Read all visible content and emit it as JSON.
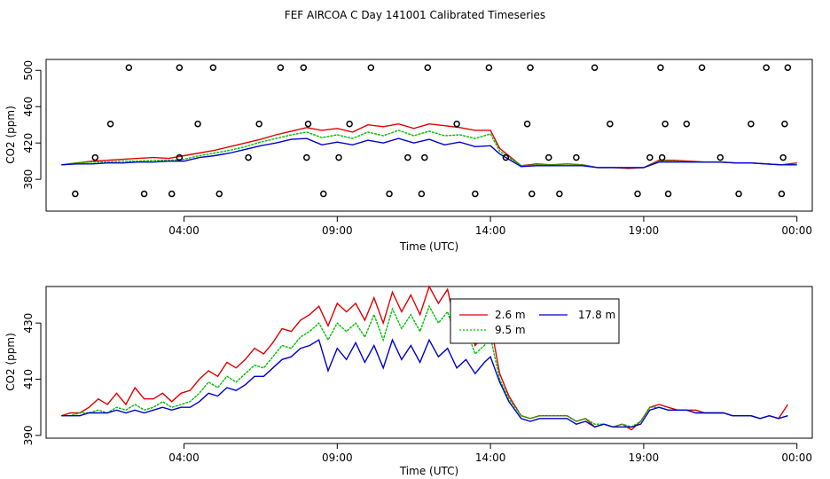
{
  "figure": {
    "title": "FEF AIRCOA C  Day 141001  Calibrated Timeseries"
  },
  "colors": {
    "red": "#e00000",
    "green": "#00c000",
    "blue": "#0000d0",
    "axis": "#000000"
  },
  "chart_data": [
    {
      "type": "line",
      "panel": "top",
      "xlabel": "Time (UTC)",
      "ylabel": "CO2 (ppm)",
      "xlim": [
        -0.5,
        24.5
      ],
      "ylim": [
        345,
        512
      ],
      "x_ticks": [
        4,
        9,
        14,
        19,
        24
      ],
      "x_tick_labels": [
        "04:00",
        "09:00",
        "14:00",
        "19:00",
        "00:00"
      ],
      "y_ticks": [
        380,
        420,
        460,
        500
      ],
      "y_tick_labels": [
        "380",
        "420",
        "460",
        "500"
      ],
      "series": [
        {
          "name": "2.6 m",
          "color": "red",
          "x": [
            0,
            0.5,
            1,
            1.5,
            2,
            2.5,
            3,
            3.5,
            4,
            4.5,
            5,
            5.5,
            6,
            6.5,
            7,
            7.5,
            8,
            8.5,
            9,
            9.5,
            10,
            10.5,
            11,
            11.5,
            12,
            12.5,
            13,
            13.5,
            14,
            14.3,
            15,
            15.5,
            16,
            16.5,
            17,
            17.5,
            18,
            18.5,
            19,
            19.5,
            20,
            20.5,
            21,
            21.5,
            22,
            22.5,
            23,
            23.5,
            24
          ],
          "y": [
            396,
            398,
            400,
            401,
            402,
            403,
            404,
            403,
            406,
            409,
            412,
            416,
            420,
            424,
            429,
            433,
            437,
            434,
            436,
            432,
            440,
            438,
            441,
            436,
            441,
            439,
            437,
            434,
            434,
            414,
            395,
            397,
            396,
            397,
            396,
            393,
            393,
            392,
            393,
            401,
            401,
            400,
            399,
            399,
            398,
            398,
            397,
            396,
            398
          ]
        },
        {
          "name": "9.5 m",
          "color": "green",
          "x": [
            0,
            0.5,
            1,
            1.5,
            2,
            2.5,
            3,
            3.5,
            4,
            4.5,
            5,
            5.5,
            6,
            6.5,
            7,
            7.5,
            8,
            8.5,
            9,
            9.5,
            10,
            10.5,
            11,
            11.5,
            12,
            12.5,
            13,
            13.5,
            14,
            14.3,
            15,
            15.5,
            16,
            16.5,
            17,
            17.5,
            18,
            18.5,
            19,
            19.5,
            20,
            20.5,
            21,
            21.5,
            22,
            22.5,
            23,
            23.5,
            24
          ],
          "y": [
            396,
            398,
            399,
            399,
            400,
            400,
            401,
            401,
            402,
            406,
            409,
            412,
            416,
            421,
            425,
            429,
            432,
            426,
            429,
            425,
            432,
            428,
            434,
            428,
            433,
            428,
            429,
            425,
            430,
            411,
            395,
            396,
            396,
            397,
            396,
            393,
            393,
            393,
            393,
            400,
            400,
            399,
            399,
            399,
            398,
            398,
            397,
            396,
            396
          ]
        },
        {
          "name": "17.8 m",
          "color": "blue",
          "x": [
            0,
            0.5,
            1,
            1.5,
            2,
            2.5,
            3,
            3.5,
            4,
            4.5,
            5,
            5.5,
            6,
            6.5,
            7,
            7.5,
            8,
            8.5,
            9,
            9.5,
            10,
            10.5,
            11,
            11.5,
            12,
            12.5,
            13,
            13.5,
            14,
            14.3,
            15,
            15.5,
            16,
            16.5,
            17,
            17.5,
            18,
            18.5,
            19,
            19.5,
            20,
            20.5,
            21,
            21.5,
            22,
            22.5,
            23,
            23.5,
            24
          ],
          "y": [
            396,
            397,
            397,
            398,
            398,
            399,
            399,
            400,
            400,
            404,
            406,
            409,
            413,
            417,
            420,
            424,
            425,
            418,
            421,
            418,
            423,
            420,
            425,
            420,
            424,
            418,
            421,
            416,
            417,
            408,
            394,
            395,
            395,
            395,
            395,
            393,
            393,
            393,
            393,
            399,
            399,
            399,
            399,
            399,
            398,
            398,
            397,
            396,
            396
          ]
        }
      ],
      "points": {
        "x": [
          0.45,
          1.1,
          1.6,
          2.2,
          2.7,
          3.6,
          3.85,
          3.85,
          4.45,
          4.95,
          5.15,
          6.1,
          6.45,
          7.15,
          7.9,
          8.0,
          8.05,
          8.55,
          9.05,
          9.4,
          10.1,
          10.7,
          11.3,
          11.75,
          11.85,
          11.95,
          12.9,
          13.5,
          13.95,
          14.5,
          15.2,
          15.3,
          15.35,
          15.9,
          16.25,
          16.8,
          17.4,
          17.9,
          18.8,
          19.2,
          19.55,
          19.6,
          19.7,
          19.8,
          20.4,
          20.9,
          21.5,
          22.1,
          22.5,
          23.0,
          23.5,
          23.55,
          23.6,
          23.7
        ],
        "y": [
          364,
          404,
          441,
          503,
          364,
          364,
          404,
          503,
          441,
          503,
          364,
          404,
          441,
          503,
          503,
          404,
          441,
          364,
          404,
          441,
          503,
          364,
          404,
          364,
          404,
          503,
          441,
          364,
          503,
          404,
          441,
          503,
          364,
          404,
          364,
          404,
          503,
          441,
          364,
          404,
          503,
          404,
          441,
          364,
          441,
          503,
          404,
          364,
          441,
          503,
          364,
          404,
          441,
          503
        ]
      }
    },
    {
      "type": "line",
      "panel": "bottom",
      "xlabel": "Time (UTC)",
      "ylabel": "CO2 (ppm)",
      "xlim": [
        -0.5,
        24.5
      ],
      "ylim": [
        389,
        443
      ],
      "x_ticks": [
        4,
        9,
        14,
        19,
        24
      ],
      "x_tick_labels": [
        "04:00",
        "09:00",
        "14:00",
        "19:00",
        "00:00"
      ],
      "y_ticks": [
        390,
        410,
        430
      ],
      "y_tick_labels": [
        "390",
        "410",
        "430"
      ],
      "legend": {
        "placement": "top-right",
        "entries": [
          "2.6 m",
          "9.5 m",
          "17.8 m"
        ]
      },
      "series": [
        {
          "name": "2.6 m",
          "color": "red",
          "x": [
            0,
            0.3,
            0.6,
            0.9,
            1.2,
            1.5,
            1.8,
            2.1,
            2.4,
            2.7,
            3.0,
            3.3,
            3.6,
            3.9,
            4.2,
            4.5,
            4.8,
            5.1,
            5.4,
            5.7,
            6.0,
            6.3,
            6.6,
            6.9,
            7.2,
            7.5,
            7.8,
            8.1,
            8.4,
            8.7,
            9.0,
            9.3,
            9.6,
            9.9,
            10.2,
            10.5,
            10.8,
            11.1,
            11.4,
            11.7,
            12.0,
            12.3,
            12.6,
            12.9,
            13.2,
            13.5,
            13.8,
            14.0,
            14.3,
            14.6,
            15.0,
            15.3,
            15.6,
            15.9,
            16.2,
            16.5,
            16.8,
            17.1,
            17.4,
            17.7,
            18.0,
            18.3,
            18.6,
            18.9,
            19.2,
            19.5,
            19.8,
            20.1,
            20.4,
            20.7,
            21.0,
            21.3,
            21.6,
            21.9,
            22.2,
            22.5,
            22.8,
            23.1,
            23.4,
            23.7
          ],
          "y": [
            397,
            398,
            398,
            400,
            403,
            401,
            405,
            401,
            407,
            403,
            403,
            405,
            402,
            405,
            406,
            410,
            413,
            411,
            416,
            414,
            417,
            421,
            419,
            423,
            428,
            427,
            431,
            433,
            436,
            429,
            437,
            434,
            437,
            431,
            439,
            430,
            441,
            434,
            440,
            433,
            443,
            437,
            442,
            427,
            433,
            422,
            426,
            430,
            412,
            404,
            397,
            396,
            397,
            397,
            397,
            397,
            395,
            396,
            393,
            394,
            393,
            394,
            392,
            395,
            400,
            401,
            400,
            399,
            399,
            399,
            398,
            398,
            398,
            397,
            397,
            397,
            396,
            397,
            396,
            401
          ]
        },
        {
          "name": "9.5 m",
          "color": "green",
          "x": [
            0,
            0.3,
            0.6,
            0.9,
            1.2,
            1.5,
            1.8,
            2.1,
            2.4,
            2.7,
            3.0,
            3.3,
            3.6,
            3.9,
            4.2,
            4.5,
            4.8,
            5.1,
            5.4,
            5.7,
            6.0,
            6.3,
            6.6,
            6.9,
            7.2,
            7.5,
            7.8,
            8.1,
            8.4,
            8.7,
            9.0,
            9.3,
            9.6,
            9.9,
            10.2,
            10.5,
            10.8,
            11.1,
            11.4,
            11.7,
            12.0,
            12.3,
            12.6,
            12.9,
            13.2,
            13.5,
            13.8,
            14.0,
            14.3,
            14.6,
            15.0,
            15.3,
            15.6,
            15.9,
            16.2,
            16.5,
            16.8,
            17.1,
            17.4,
            17.7,
            18.0,
            18.3,
            18.6,
            18.9,
            19.2,
            19.5,
            19.8,
            20.1,
            20.4,
            20.7,
            21.0,
            21.3,
            21.6,
            21.9,
            22.2,
            22.5,
            22.8,
            23.1,
            23.4,
            23.7
          ],
          "y": [
            397,
            397,
            398,
            398,
            399,
            398,
            400,
            399,
            401,
            399,
            400,
            402,
            400,
            401,
            402,
            405,
            409,
            407,
            411,
            409,
            412,
            415,
            414,
            418,
            422,
            421,
            425,
            427,
            430,
            424,
            430,
            427,
            430,
            425,
            433,
            424,
            435,
            428,
            433,
            427,
            436,
            430,
            434,
            424,
            428,
            419,
            422,
            425,
            410,
            403,
            397,
            396,
            397,
            397,
            397,
            397,
            395,
            396,
            394,
            394,
            393,
            394,
            393,
            395,
            400,
            400,
            399,
            399,
            399,
            398,
            398,
            398,
            398,
            397,
            397,
            397,
            396,
            397,
            396,
            397
          ]
        },
        {
          "name": "17.8 m",
          "color": "blue",
          "x": [
            0,
            0.3,
            0.6,
            0.9,
            1.2,
            1.5,
            1.8,
            2.1,
            2.4,
            2.7,
            3.0,
            3.3,
            3.6,
            3.9,
            4.2,
            4.5,
            4.8,
            5.1,
            5.4,
            5.7,
            6.0,
            6.3,
            6.6,
            6.9,
            7.2,
            7.5,
            7.8,
            8.1,
            8.4,
            8.7,
            9.0,
            9.3,
            9.6,
            9.9,
            10.2,
            10.5,
            10.8,
            11.1,
            11.4,
            11.7,
            12.0,
            12.3,
            12.6,
            12.9,
            13.2,
            13.5,
            13.8,
            14.0,
            14.3,
            14.6,
            15.0,
            15.3,
            15.6,
            15.9,
            16.2,
            16.5,
            16.8,
            17.1,
            17.4,
            17.7,
            18.0,
            18.3,
            18.6,
            18.9,
            19.2,
            19.5,
            19.8,
            20.1,
            20.4,
            20.7,
            21.0,
            21.3,
            21.6,
            21.9,
            22.2,
            22.5,
            22.8,
            23.1,
            23.4,
            23.7
          ],
          "y": [
            397,
            397,
            397,
            398,
            398,
            398,
            399,
            398,
            399,
            398,
            399,
            400,
            399,
            400,
            400,
            402,
            405,
            404,
            407,
            406,
            408,
            411,
            411,
            414,
            417,
            418,
            421,
            422,
            424,
            413,
            421,
            417,
            423,
            416,
            422,
            414,
            424,
            417,
            422,
            416,
            424,
            418,
            421,
            414,
            417,
            412,
            416,
            418,
            409,
            402,
            396,
            395,
            396,
            396,
            396,
            396,
            394,
            395,
            393,
            394,
            393,
            393,
            393,
            394,
            399,
            400,
            399,
            399,
            399,
            398,
            398,
            398,
            398,
            397,
            397,
            397,
            396,
            397,
            396,
            397
          ]
        }
      ]
    }
  ]
}
